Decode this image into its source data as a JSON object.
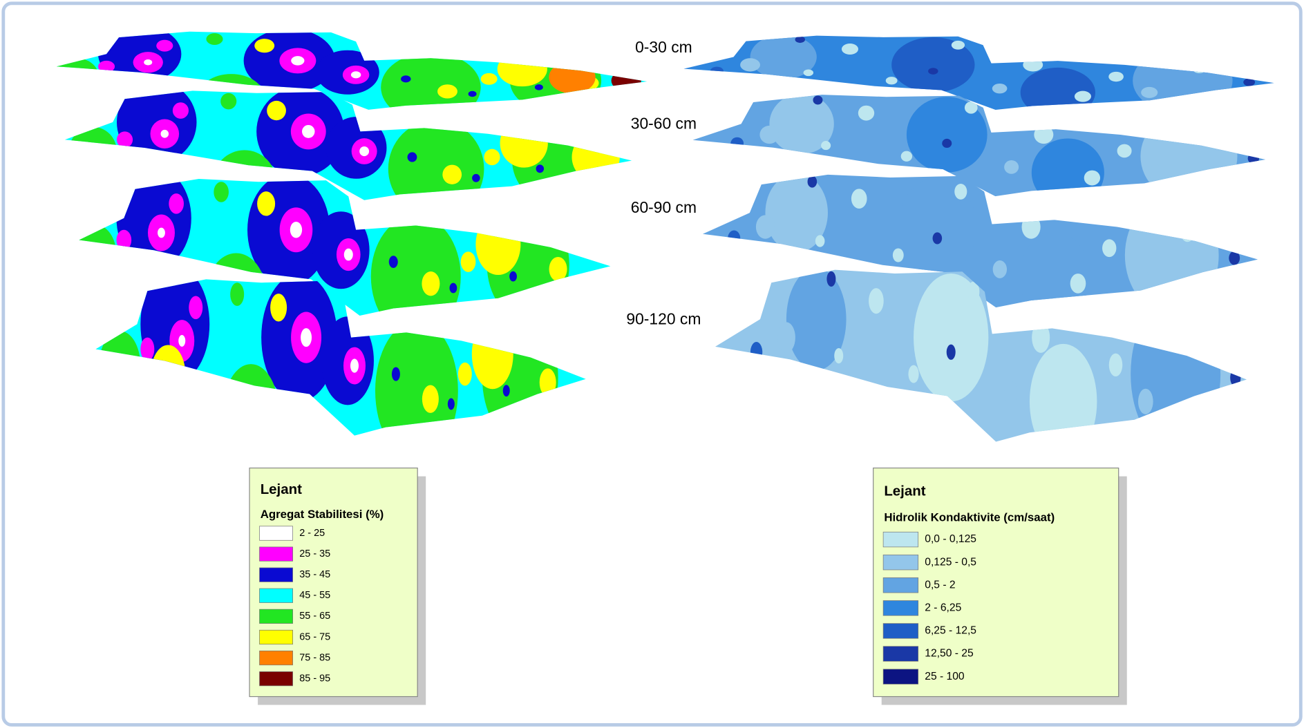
{
  "depth_labels": [
    "0-30 cm",
    "30-60 cm",
    "60-90 cm",
    "90-120 cm"
  ],
  "legends": [
    {
      "title": "Lejant",
      "subtitle": "Agregat Stabilitesi (%)",
      "items": [
        {
          "label": "2 - 25",
          "color": "#ffffff"
        },
        {
          "label": "25 - 35",
          "color": "#ff00ff"
        },
        {
          "label": "35 - 45",
          "color": "#0a0ad2"
        },
        {
          "label": "45 - 55",
          "color": "#00ffff"
        },
        {
          "label": "55 - 65",
          "color": "#22e622"
        },
        {
          "label": "65 - 75",
          "color": "#ffff00"
        },
        {
          "label": "75 - 85",
          "color": "#ff8000"
        },
        {
          "label": "85 - 95",
          "color": "#7a0000"
        }
      ]
    },
    {
      "title": "Lejant",
      "subtitle": "Hidrolik Kondaktivite (cm/saat)",
      "items": [
        {
          "label": "0,0 - 0,125",
          "color": "#bde6ef"
        },
        {
          "label": "0,125 - 0,5",
          "color": "#93c6ea"
        },
        {
          "label": "0,5 - 2",
          "color": "#62a4e2"
        },
        {
          "label": "2 - 6,25",
          "color": "#2f86de"
        },
        {
          "label": "6,25 - 12,5",
          "color": "#1f5ec6"
        },
        {
          "label": "12,50 - 25",
          "color": "#1a38a6"
        },
        {
          "label": "25 - 100",
          "color": "#0c1482"
        }
      ]
    }
  ]
}
